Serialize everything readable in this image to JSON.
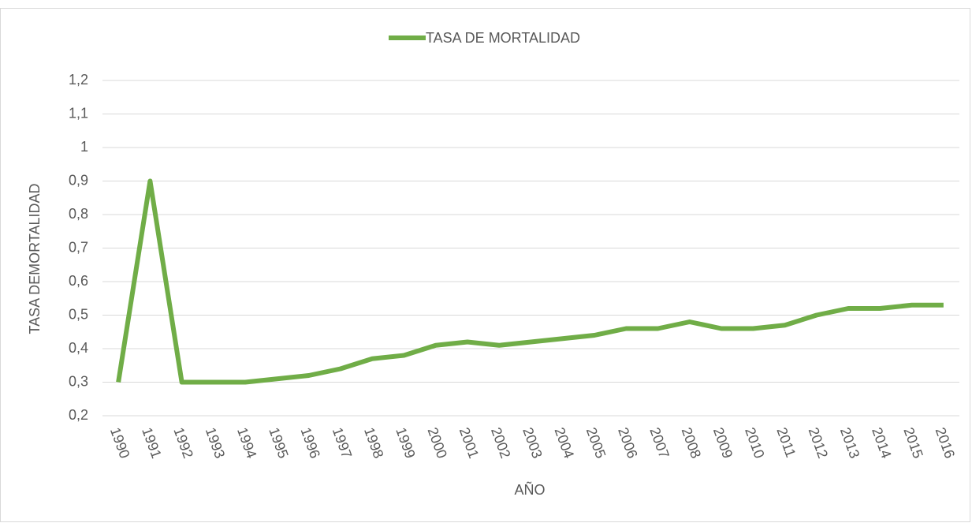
{
  "chart_data": {
    "type": "line",
    "x_label": "AÑO",
    "y_label": "TASA DEMORTALIDAD",
    "categories": [
      "1990",
      "1991",
      "1992",
      "1993",
      "1994",
      "1995",
      "1996",
      "1997",
      "1998",
      "1999",
      "2000",
      "2001",
      "2002",
      "2003",
      "2004",
      "2005",
      "2006",
      "2007",
      "2008",
      "2009",
      "2010",
      "2011",
      "2012",
      "2013",
      "2014",
      "2015",
      "2016"
    ],
    "series": [
      {
        "name": "TASA DE MORTALIDAD",
        "color": "#70ad47",
        "values": [
          0.3,
          0.9,
          0.3,
          0.3,
          0.3,
          0.31,
          0.32,
          0.34,
          0.37,
          0.38,
          0.41,
          0.42,
          0.41,
          0.42,
          0.43,
          0.44,
          0.46,
          0.46,
          0.48,
          0.46,
          0.46,
          0.47,
          0.5,
          0.52,
          0.52,
          0.53,
          0.53
        ]
      }
    ],
    "ylim": [
      0.2,
      1.2
    ],
    "yticks": [
      {
        "value": 0.2,
        "label": "0,2"
      },
      {
        "value": 0.3,
        "label": "0,3"
      },
      {
        "value": 0.4,
        "label": "0,4"
      },
      {
        "value": 0.5,
        "label": "0,5"
      },
      {
        "value": 0.6,
        "label": "0,6"
      },
      {
        "value": 0.7,
        "label": "0,7"
      },
      {
        "value": 0.8,
        "label": "0,8"
      },
      {
        "value": 0.9,
        "label": "0,9"
      },
      1,
      {
        "value": 1.1,
        "label": "1,1"
      },
      {
        "value": 1.2,
        "label": "1,2"
      }
    ],
    "grid": true,
    "legend": "top"
  }
}
